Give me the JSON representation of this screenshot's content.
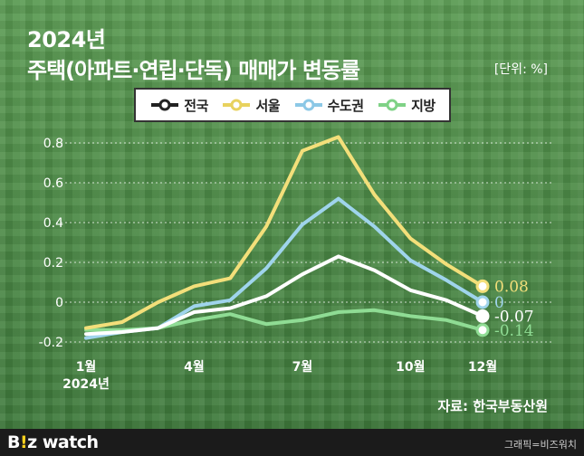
{
  "title": "2024년",
  "subtitle": "주택(아파트·연립·단독) 매매가 변동률",
  "unit_label": "[단위: %]",
  "source": "자료: 한국부동산원",
  "footer": {
    "logo_prefix": "B",
    "logo_highlight": "!",
    "logo_suffix": "z watch",
    "credit": "그래픽=비즈워치"
  },
  "colors": {
    "national": "#ffffff",
    "seoul": "#f3df7a",
    "capital": "#9fd4ec",
    "regional": "#8fdc94"
  },
  "chart_data": {
    "type": "line",
    "title": "주택(아파트·연립·단독) 매매가 변동률",
    "ylim": [
      -0.2,
      0.9
    ],
    "yticks": [
      0.8,
      0.6,
      0.4,
      0.2,
      0,
      -0.2
    ],
    "ytick_labels": [
      "0.8",
      "0.6",
      "0.4",
      "0.2",
      "0",
      "-0.2"
    ],
    "x": [
      1,
      2,
      3,
      4,
      5,
      6,
      7,
      8,
      9,
      10,
      11,
      12
    ],
    "xticks": [
      1,
      4,
      7,
      10,
      12
    ],
    "xtick_labels": [
      "1월",
      "4월",
      "7월",
      "10월",
      "12월"
    ],
    "xtick_sublabel": "2024년",
    "grid": true,
    "legend_position": "top",
    "series": [
      {
        "name": "전국",
        "color_key": "national",
        "values": [
          -0.16,
          -0.15,
          -0.13,
          -0.05,
          -0.03,
          0.03,
          0.14,
          0.23,
          0.16,
          0.06,
          0.01,
          -0.07
        ],
        "end_label": "-0.07"
      },
      {
        "name": "서울",
        "color_key": "seoul",
        "values": [
          -0.13,
          -0.1,
          0.0,
          0.08,
          0.12,
          0.38,
          0.76,
          0.83,
          0.54,
          0.32,
          0.19,
          0.08
        ],
        "end_label": "0.08"
      },
      {
        "name": "수도권",
        "color_key": "capital",
        "values": [
          -0.18,
          -0.15,
          -0.13,
          -0.02,
          0.01,
          0.17,
          0.39,
          0.52,
          0.38,
          0.21,
          0.11,
          0.0
        ],
        "end_label": "0"
      },
      {
        "name": "지방",
        "color_key": "regional",
        "values": [
          -0.14,
          -0.14,
          -0.13,
          -0.09,
          -0.06,
          -0.11,
          -0.09,
          -0.05,
          -0.04,
          -0.07,
          -0.09,
          -0.14
        ],
        "end_label": "-0.14"
      }
    ]
  }
}
